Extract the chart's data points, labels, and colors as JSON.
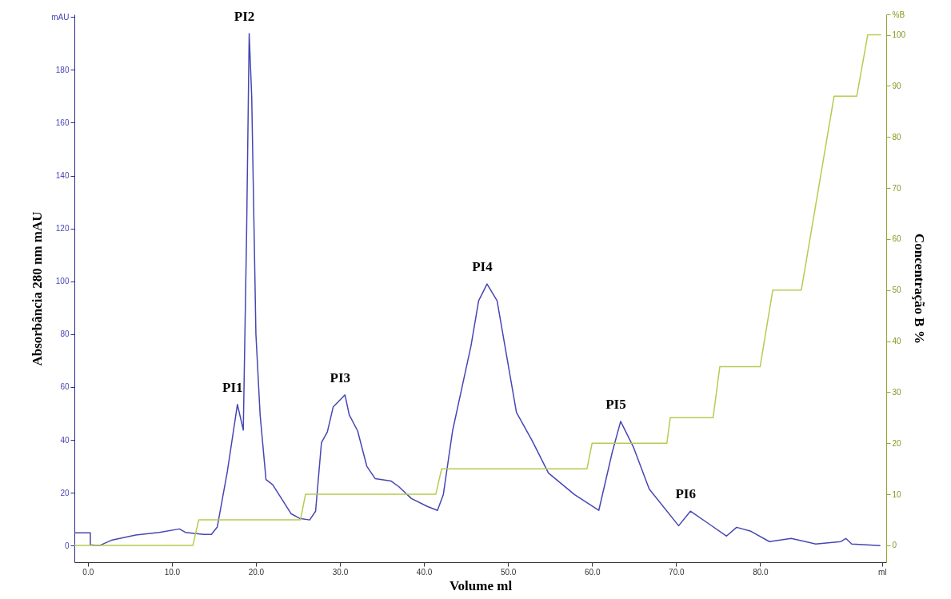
{
  "chart_data": {
    "type": "line",
    "xlabel": "Volume ml",
    "ylabel": "Absorbância 280 nm mAU",
    "y2label": "Concentração B %",
    "xlim": [
      -1.6,
      95
    ],
    "ylim": [
      -6.3,
      201
    ],
    "y2lim": [
      -3.3,
      104
    ],
    "xticks": [
      {
        "value": 0,
        "label": "0.0"
      },
      {
        "value": 10,
        "label": "10.0"
      },
      {
        "value": 20,
        "label": "20.0"
      },
      {
        "value": 30,
        "label": "30.0"
      },
      {
        "value": 40,
        "label": "40.0"
      },
      {
        "value": 50,
        "label": "50.0"
      },
      {
        "value": 60,
        "label": "60.0"
      },
      {
        "value": 70,
        "label": "70.0"
      },
      {
        "value": 80,
        "label": "80.0"
      },
      {
        "value": 94.5,
        "label": "ml"
      }
    ],
    "yticks": [
      0,
      20,
      40,
      60,
      80,
      100,
      120,
      140,
      160,
      180,
      {
        "value": 200,
        "label": "mAU"
      }
    ],
    "y2ticks": [
      0,
      10,
      20,
      30,
      40,
      50,
      60,
      70,
      80,
      90,
      100,
      {
        "value": 104,
        "label": "%B"
      }
    ],
    "series": [
      {
        "color": "#4646b4",
        "x": [
          -1.6,
          0.3,
          0.3,
          1.4,
          2.8,
          5.7,
          8.5,
          10.9,
          11.6,
          13.8,
          14.7,
          15.4,
          16.6,
          17.8,
          18.5,
          18.9,
          19.2,
          19.5,
          19.8,
          20.0,
          20.5,
          21.2,
          22.0,
          22.8,
          24.2,
          25.2,
          26.4,
          27.1,
          27.8,
          28.5,
          29.2,
          30.6,
          31.1,
          32.1,
          33.2,
          34.2,
          36.1,
          37.0,
          38.5,
          40.4,
          41.6,
          42.3,
          43.4,
          45.6,
          46.5,
          47.5,
          48.7,
          51.0,
          52.9,
          54.8,
          57.9,
          60.8,
          62.4,
          63.4,
          64.9,
          66.8,
          70.3,
          71.7,
          74.0,
          76.0,
          77.2,
          78.9,
          81.1,
          83.7,
          86.6,
          89.6,
          90.2,
          90.9,
          94.3
        ],
        "values": [
          4.8,
          4.8,
          0.3,
          0,
          2,
          4,
          5,
          6.3,
          5,
          4.2,
          4.2,
          7,
          28,
          53.4,
          43.7,
          120,
          193.7,
          170,
          116,
          80,
          49.5,
          25,
          23,
          19,
          12,
          10.3,
          9.7,
          13,
          39,
          43,
          52.5,
          57,
          49.5,
          43.4,
          30,
          25.3,
          24.4,
          22.3,
          17.8,
          14.8,
          13.3,
          19.3,
          43.4,
          75.7,
          92.6,
          99,
          92.6,
          50.4,
          39.5,
          27.5,
          19.3,
          13.3,
          35.3,
          47,
          37.4,
          21.4,
          7.5,
          13,
          8,
          3.6,
          6.9,
          5.4,
          1.5,
          2.7,
          0.6,
          1.5,
          2.7,
          0.6,
          0
        ]
      },
      {
        "color": "#b4cc50",
        "axis": "y2",
        "x": [
          -1.6,
          12.5,
          13.2,
          25.3,
          25.9,
          41.4,
          42.1,
          59.4,
          60.0,
          68.9,
          69.3,
          74.4,
          75.2,
          80.0,
          81.5,
          84.9,
          88.8,
          91.5,
          92.8,
          94.4
        ],
        "values": [
          0,
          0,
          5,
          5,
          10,
          10,
          15,
          15,
          20,
          20,
          25,
          25,
          35,
          35,
          50,
          50,
          88,
          88,
          100,
          100
        ]
      }
    ],
    "annotations": [
      {
        "text": "PI1",
        "x": 17.8,
        "y": 53.4
      },
      {
        "text": "PI2",
        "x": 19.2,
        "y": 193.7
      },
      {
        "text": "PI3",
        "x": 30.6,
        "y": 57
      },
      {
        "text": "PI4",
        "x": 47.5,
        "y": 99
      },
      {
        "text": "PI5",
        "x": 63.4,
        "y": 47
      },
      {
        "text": "PI6",
        "x": 71.7,
        "y": 13
      }
    ]
  }
}
